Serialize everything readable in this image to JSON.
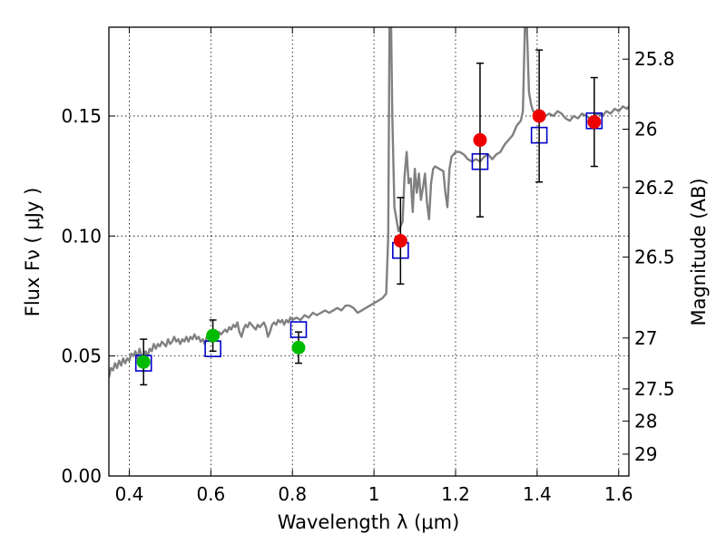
{
  "chart_data": {
    "type": "scatter",
    "xlabel": "Wavelength  λ (μm)",
    "ylabel": "Flux  Fν  ( μJy )",
    "y2label": "Magnitude (AB)",
    "xlim": [
      0.35,
      1.625
    ],
    "ylim": [
      0.0,
      0.187
    ],
    "grid": true,
    "x_ticks": [
      {
        "value": 0.4,
        "label": "0.4"
      },
      {
        "value": 0.6,
        "label": "0.6"
      },
      {
        "value": 0.8,
        "label": "0.8"
      },
      {
        "value": 1.0,
        "label": "1"
      },
      {
        "value": 1.2,
        "label": "1.2"
      },
      {
        "value": 1.4,
        "label": "1.4"
      },
      {
        "value": 1.6,
        "label": "1.6"
      }
    ],
    "y_ticks": [
      {
        "value": 0.0,
        "label": "0.00"
      },
      {
        "value": 0.05,
        "label": "0.05"
      },
      {
        "value": 0.1,
        "label": "0.10"
      },
      {
        "value": 0.15,
        "label": "0.15"
      }
    ],
    "y2_ticks": [
      {
        "label": "25.8",
        "flux": 0.1737
      },
      {
        "label": "26",
        "flux": 0.1445
      },
      {
        "label": "26.2",
        "flux": 0.1202
      },
      {
        "label": "26.5",
        "flux": 0.0912
      },
      {
        "label": "27",
        "flux": 0.0575
      },
      {
        "label": "27.5",
        "flux": 0.0363
      },
      {
        "label": "28",
        "flux": 0.0229
      },
      {
        "label": "29",
        "flux": 0.0091
      }
    ],
    "series": [
      {
        "kind": "spectrum",
        "color": "#808080",
        "points": [
          [
            0.35,
            0.041
          ],
          [
            0.355,
            0.045
          ],
          [
            0.36,
            0.044
          ],
          [
            0.365,
            0.047
          ],
          [
            0.37,
            0.045
          ],
          [
            0.375,
            0.048
          ],
          [
            0.38,
            0.046
          ],
          [
            0.385,
            0.049
          ],
          [
            0.39,
            0.047
          ],
          [
            0.395,
            0.049
          ],
          [
            0.4,
            0.048
          ],
          [
            0.405,
            0.051
          ],
          [
            0.41,
            0.05
          ],
          [
            0.415,
            0.052
          ],
          [
            0.42,
            0.049
          ],
          [
            0.425,
            0.053
          ],
          [
            0.43,
            0.05
          ],
          [
            0.435,
            0.049
          ],
          [
            0.44,
            0.052
          ],
          [
            0.445,
            0.05
          ],
          [
            0.45,
            0.053
          ],
          [
            0.455,
            0.052
          ],
          [
            0.46,
            0.055
          ],
          [
            0.465,
            0.053
          ],
          [
            0.47,
            0.055
          ],
          [
            0.475,
            0.054
          ],
          [
            0.48,
            0.056
          ],
          [
            0.485,
            0.055
          ],
          [
            0.49,
            0.054
          ],
          [
            0.495,
            0.057
          ],
          [
            0.5,
            0.055
          ],
          [
            0.505,
            0.056
          ],
          [
            0.51,
            0.058
          ],
          [
            0.515,
            0.056
          ],
          [
            0.52,
            0.057
          ],
          [
            0.525,
            0.055
          ],
          [
            0.53,
            0.057
          ],
          [
            0.535,
            0.056
          ],
          [
            0.54,
            0.058
          ],
          [
            0.545,
            0.056
          ],
          [
            0.55,
            0.058
          ],
          [
            0.555,
            0.057
          ],
          [
            0.56,
            0.059
          ],
          [
            0.565,
            0.057
          ],
          [
            0.57,
            0.058
          ],
          [
            0.575,
            0.056
          ],
          [
            0.58,
            0.057
          ],
          [
            0.585,
            0.055
          ],
          [
            0.59,
            0.058
          ],
          [
            0.595,
            0.057
          ],
          [
            0.6,
            0.059
          ],
          [
            0.605,
            0.058
          ],
          [
            0.61,
            0.06
          ],
          [
            0.615,
            0.058
          ],
          [
            0.62,
            0.06
          ],
          [
            0.625,
            0.059
          ],
          [
            0.63,
            0.06
          ],
          [
            0.635,
            0.061
          ],
          [
            0.64,
            0.06
          ],
          [
            0.645,
            0.062
          ],
          [
            0.65,
            0.061
          ],
          [
            0.655,
            0.063
          ],
          [
            0.66,
            0.062
          ],
          [
            0.665,
            0.064
          ],
          [
            0.67,
            0.06
          ],
          [
            0.675,
            0.058
          ],
          [
            0.68,
            0.061
          ],
          [
            0.685,
            0.063
          ],
          [
            0.69,
            0.062
          ],
          [
            0.695,
            0.064
          ],
          [
            0.7,
            0.063
          ],
          [
            0.705,
            0.062
          ],
          [
            0.71,
            0.061
          ],
          [
            0.715,
            0.063
          ],
          [
            0.72,
            0.062
          ],
          [
            0.725,
            0.063
          ],
          [
            0.73,
            0.064
          ],
          [
            0.735,
            0.062
          ],
          [
            0.74,
            0.058
          ],
          [
            0.745,
            0.06
          ],
          [
            0.75,
            0.063
          ],
          [
            0.755,
            0.064
          ],
          [
            0.76,
            0.063
          ],
          [
            0.765,
            0.065
          ],
          [
            0.77,
            0.064
          ],
          [
            0.775,
            0.065
          ],
          [
            0.78,
            0.063
          ],
          [
            0.785,
            0.065
          ],
          [
            0.79,
            0.064
          ],
          [
            0.795,
            0.066
          ],
          [
            0.8,
            0.065
          ],
          [
            0.81,
            0.066
          ],
          [
            0.82,
            0.065
          ],
          [
            0.83,
            0.067
          ],
          [
            0.84,
            0.066
          ],
          [
            0.85,
            0.068
          ],
          [
            0.86,
            0.067
          ],
          [
            0.87,
            0.068
          ],
          [
            0.88,
            0.069
          ],
          [
            0.89,
            0.068
          ],
          [
            0.9,
            0.069
          ],
          [
            0.91,
            0.07
          ],
          [
            0.92,
            0.069
          ],
          [
            0.93,
            0.071
          ],
          [
            0.94,
            0.071
          ],
          [
            0.95,
            0.07
          ],
          [
            0.96,
            0.068
          ],
          [
            0.97,
            0.069
          ],
          [
            0.98,
            0.07
          ],
          [
            0.99,
            0.071
          ],
          [
            1.0,
            0.072
          ],
          [
            1.01,
            0.073
          ],
          [
            1.02,
            0.074
          ],
          [
            1.03,
            0.076
          ],
          [
            1.035,
            0.1
          ],
          [
            1.038,
            0.187
          ],
          [
            1.042,
            0.187
          ],
          [
            1.045,
            0.15
          ],
          [
            1.05,
            0.112
          ],
          [
            1.06,
            0.102
          ],
          [
            1.07,
            0.106
          ],
          [
            1.075,
            0.125
          ],
          [
            1.08,
            0.135
          ],
          [
            1.085,
            0.122
          ],
          [
            1.09,
            0.124
          ],
          [
            1.095,
            0.11
          ],
          [
            1.1,
            0.128
          ],
          [
            1.105,
            0.118
          ],
          [
            1.11,
            0.126
          ],
          [
            1.115,
            0.115
          ],
          [
            1.12,
            0.12
          ],
          [
            1.125,
            0.126
          ],
          [
            1.13,
            0.114
          ],
          [
            1.135,
            0.107
          ],
          [
            1.14,
            0.122
          ],
          [
            1.145,
            0.128
          ],
          [
            1.15,
            0.129
          ],
          [
            1.16,
            0.128
          ],
          [
            1.17,
            0.127
          ],
          [
            1.175,
            0.118
          ],
          [
            1.18,
            0.112
          ],
          [
            1.185,
            0.128
          ],
          [
            1.19,
            0.133
          ],
          [
            1.2,
            0.135
          ],
          [
            1.21,
            0.135
          ],
          [
            1.22,
            0.134
          ],
          [
            1.23,
            0.132
          ],
          [
            1.24,
            0.131
          ],
          [
            1.25,
            0.132
          ],
          [
            1.26,
            0.131
          ],
          [
            1.27,
            0.133
          ],
          [
            1.28,
            0.134
          ],
          [
            1.29,
            0.132
          ],
          [
            1.3,
            0.134
          ],
          [
            1.31,
            0.135
          ],
          [
            1.32,
            0.138
          ],
          [
            1.33,
            0.14
          ],
          [
            1.34,
            0.142
          ],
          [
            1.35,
            0.146
          ],
          [
            1.36,
            0.148
          ],
          [
            1.365,
            0.152
          ],
          [
            1.37,
            0.187
          ],
          [
            1.375,
            0.187
          ],
          [
            1.38,
            0.16
          ],
          [
            1.385,
            0.155
          ],
          [
            1.39,
            0.152
          ],
          [
            1.4,
            0.151
          ],
          [
            1.41,
            0.149
          ],
          [
            1.42,
            0.15
          ],
          [
            1.43,
            0.151
          ],
          [
            1.44,
            0.15
          ],
          [
            1.45,
            0.152
          ],
          [
            1.46,
            0.151
          ],
          [
            1.47,
            0.149
          ],
          [
            1.48,
            0.148
          ],
          [
            1.49,
            0.15
          ],
          [
            1.5,
            0.149
          ],
          [
            1.51,
            0.151
          ],
          [
            1.52,
            0.15
          ],
          [
            1.53,
            0.149
          ],
          [
            1.54,
            0.15
          ],
          [
            1.55,
            0.151
          ],
          [
            1.56,
            0.15
          ],
          [
            1.57,
            0.152
          ],
          [
            1.58,
            0.151
          ],
          [
            1.59,
            0.153
          ],
          [
            1.6,
            0.152
          ],
          [
            1.61,
            0.154
          ],
          [
            1.62,
            0.153
          ],
          [
            1.625,
            0.154
          ]
        ]
      },
      {
        "kind": "model_photometry",
        "marker": "open-square",
        "color": "#0000cc",
        "points": [
          {
            "x": 0.435,
            "y": 0.047
          },
          {
            "x": 0.605,
            "y": 0.053
          },
          {
            "x": 0.815,
            "y": 0.061
          },
          {
            "x": 1.065,
            "y": 0.094
          },
          {
            "x": 1.26,
            "y": 0.131
          },
          {
            "x": 1.405,
            "y": 0.142
          },
          {
            "x": 1.54,
            "y": 0.148
          }
        ]
      },
      {
        "kind": "observed_photometry",
        "marker": "filled-circle",
        "points": [
          {
            "x": 0.435,
            "y": 0.0475,
            "err": 0.0095,
            "color": "#00bb00"
          },
          {
            "x": 0.605,
            "y": 0.0585,
            "err": 0.0065,
            "color": "#00bb00"
          },
          {
            "x": 0.815,
            "y": 0.0535,
            "err": 0.0065,
            "color": "#00bb00"
          },
          {
            "x": 1.065,
            "y": 0.098,
            "err": 0.018,
            "color": "#ee0000"
          },
          {
            "x": 1.26,
            "y": 0.14,
            "err": 0.032,
            "color": "#ee0000"
          },
          {
            "x": 1.405,
            "y": 0.15,
            "err": 0.0275,
            "color": "#ee0000"
          },
          {
            "x": 1.54,
            "y": 0.1475,
            "err": 0.0185,
            "color": "#ee0000"
          }
        ]
      }
    ]
  }
}
